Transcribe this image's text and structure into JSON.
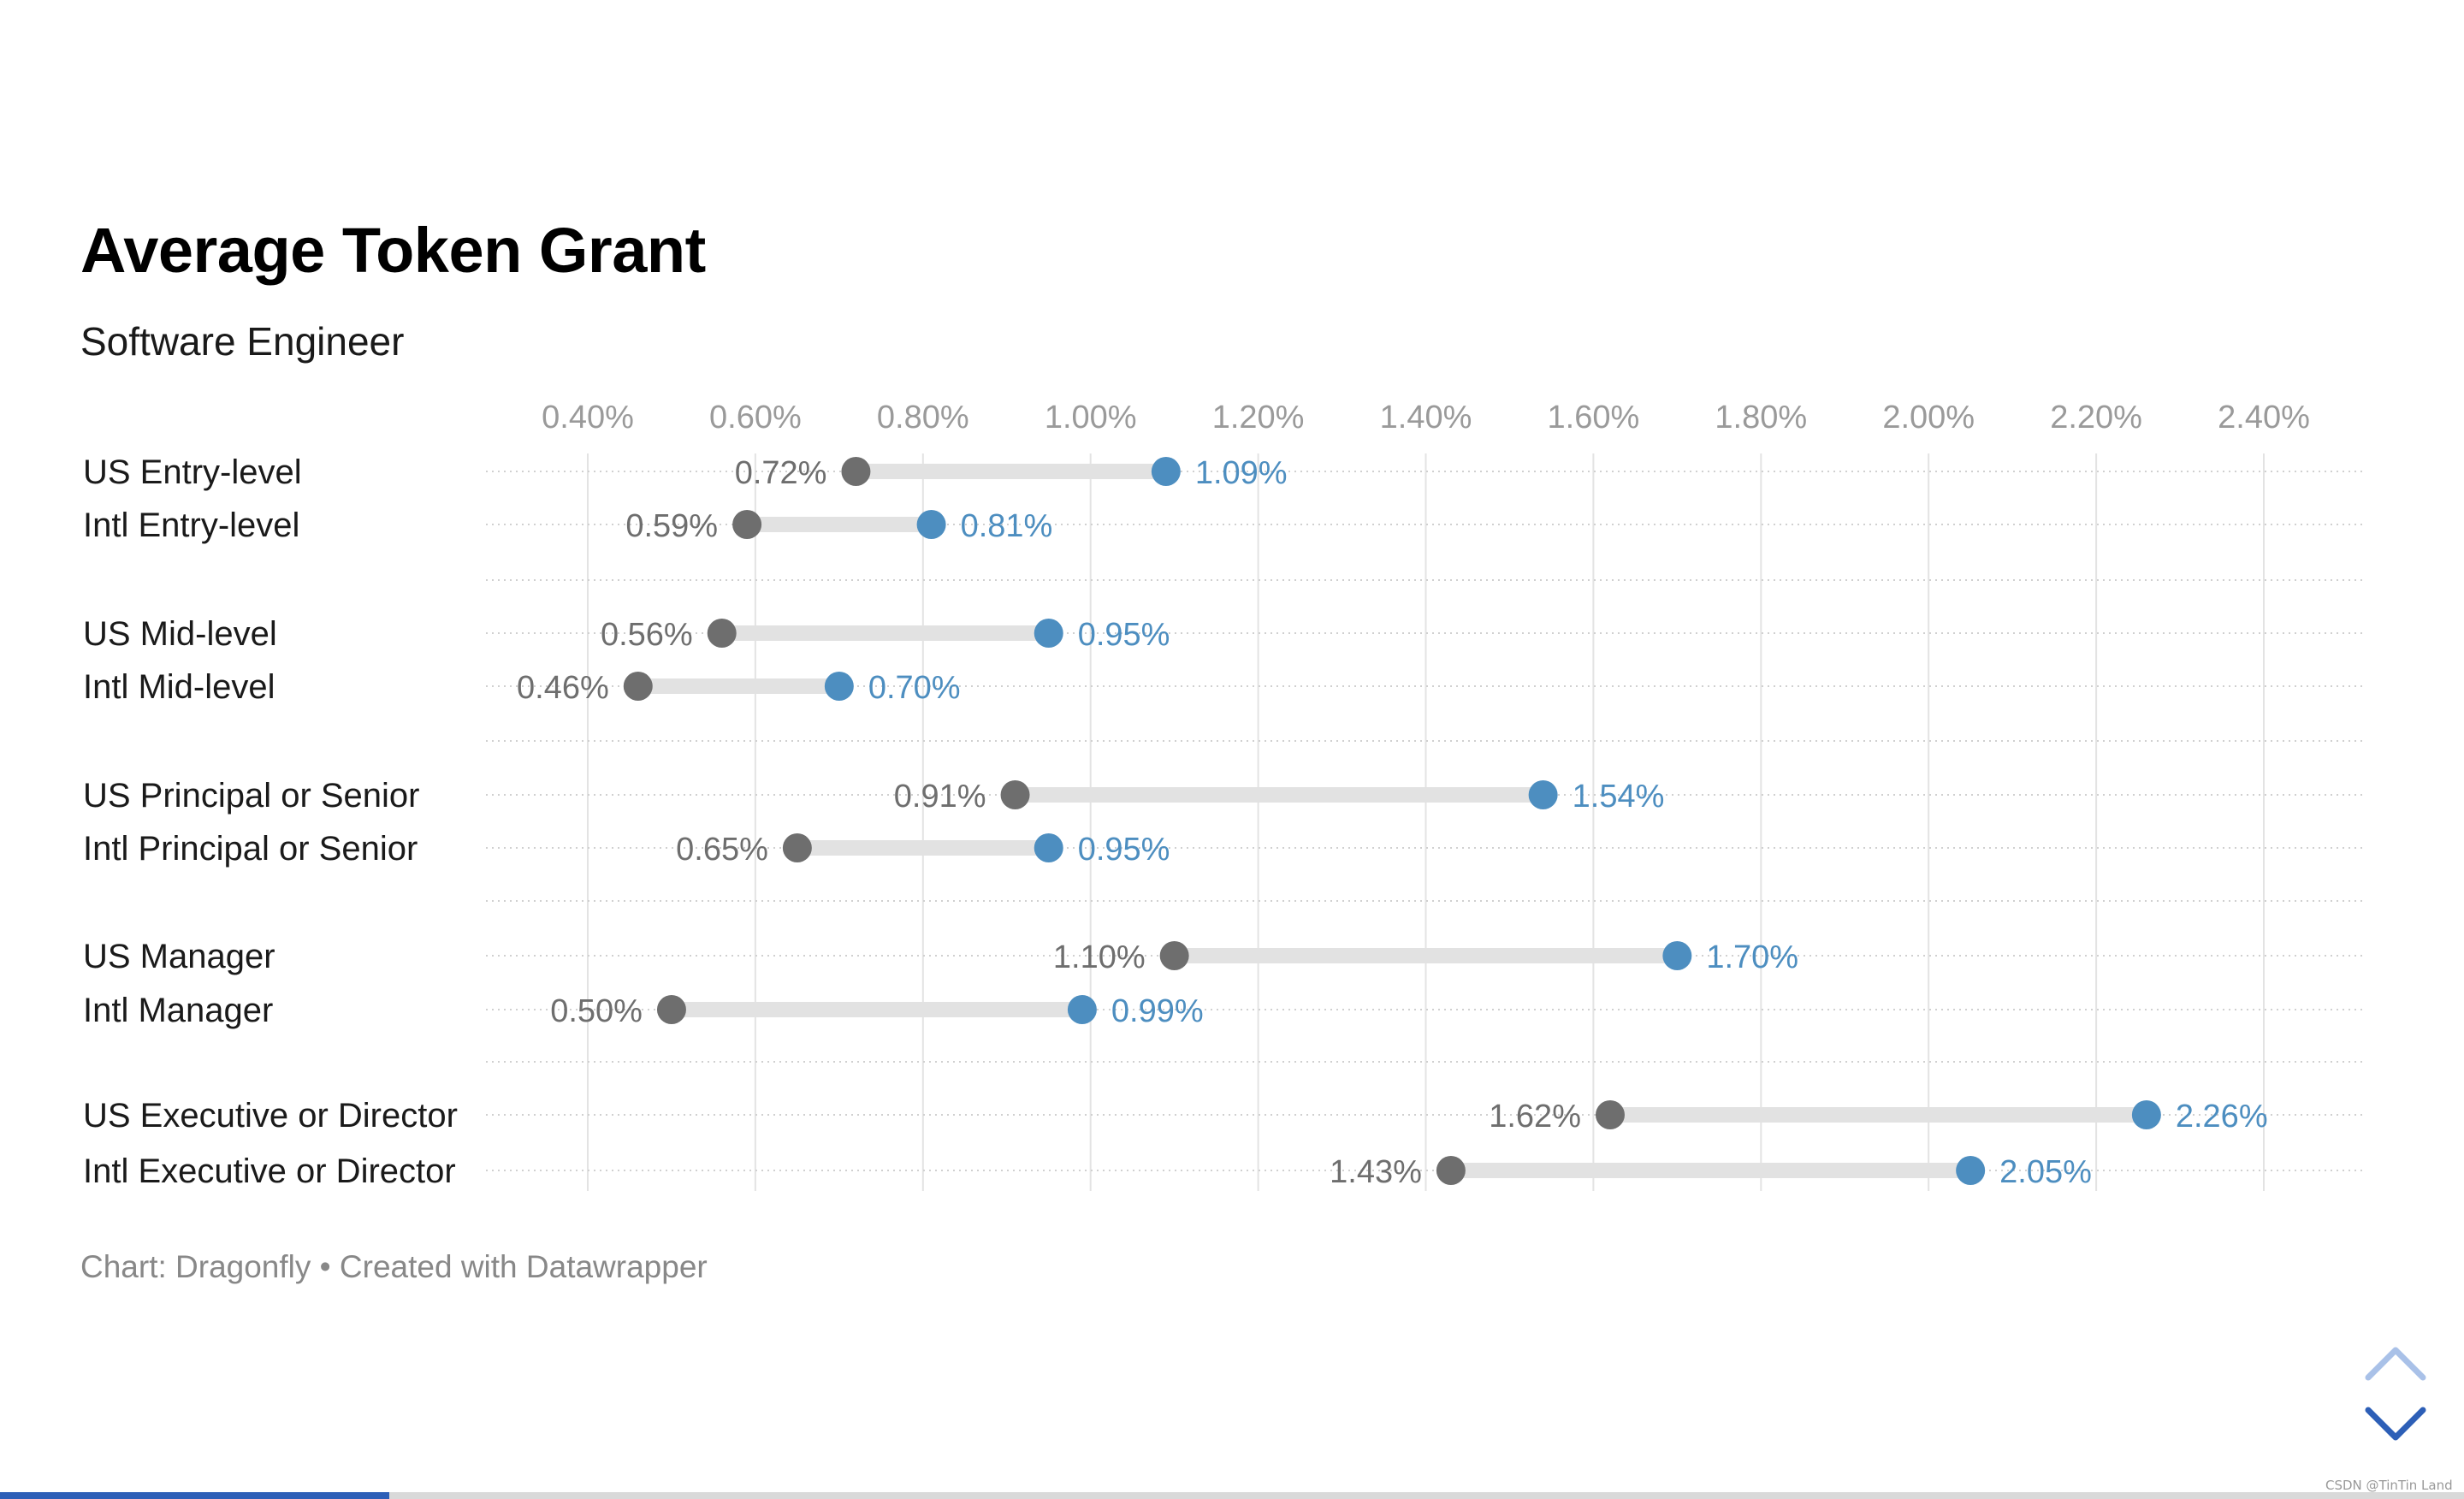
{
  "chart_data": {
    "type": "dot-range",
    "title": "Average Token Grant",
    "subtitle": "Software Engineer",
    "x_ticks": [
      "0.40%",
      "0.60%",
      "0.80%",
      "1.00%",
      "1.20%",
      "1.40%",
      "1.60%",
      "1.80%",
      "2.00%",
      "2.20%",
      "2.40%"
    ],
    "xlim": [
      0.4,
      2.4
    ],
    "value_unit": "%",
    "grid": "vertical",
    "colors": {
      "low": "#6e6e6e",
      "high": "#4d8ec0",
      "range_bar": "#e2e2e2"
    },
    "groups": [
      {
        "rows": [
          {
            "label": "US Entry-level",
            "low": 0.72,
            "high": 1.09,
            "low_label": "0.72%",
            "high_label": "1.09%"
          },
          {
            "label": "Intl Entry-level",
            "low": 0.59,
            "high": 0.81,
            "low_label": "0.59%",
            "high_label": "0.81%"
          }
        ]
      },
      {
        "rows": [
          {
            "label": "US Mid-level",
            "low": 0.56,
            "high": 0.95,
            "low_label": "0.56%",
            "high_label": "0.95%"
          },
          {
            "label": "Intl Mid-level",
            "low": 0.46,
            "high": 0.7,
            "low_label": "0.46%",
            "high_label": "0.70%"
          }
        ]
      },
      {
        "rows": [
          {
            "label": "US Principal or Senior",
            "low": 0.91,
            "high": 1.54,
            "low_label": "0.91%",
            "high_label": "1.54%"
          },
          {
            "label": "Intl Principal or Senior",
            "low": 0.65,
            "high": 0.95,
            "low_label": "0.65%",
            "high_label": "0.95%"
          }
        ]
      },
      {
        "rows": [
          {
            "label": "US Manager",
            "low": 1.1,
            "high": 1.7,
            "low_label": "1.10%",
            "high_label": "1.70%"
          },
          {
            "label": "Intl Manager",
            "low": 0.5,
            "high": 0.99,
            "low_label": "0.50%",
            "high_label": "0.99%"
          }
        ]
      },
      {
        "rows": [
          {
            "label": "US Executive or Director",
            "low": 1.62,
            "high": 2.26,
            "low_label": "1.62%",
            "high_label": "2.26%"
          },
          {
            "label": "Intl Executive or Director",
            "low": 1.43,
            "high": 2.05,
            "low_label": "1.43%",
            "high_label": "2.05%"
          }
        ]
      }
    ],
    "footer": "Chart: Dragonfly • Created with Datawrapper"
  },
  "watermark": "CSDN @TinTin Land",
  "nav": {
    "up_icon": "chevron-up-icon",
    "down_icon": "chevron-down-icon",
    "up_color": "#a9c1e8",
    "down_color": "#2d5fb7"
  },
  "scroll_progress": 0.158
}
